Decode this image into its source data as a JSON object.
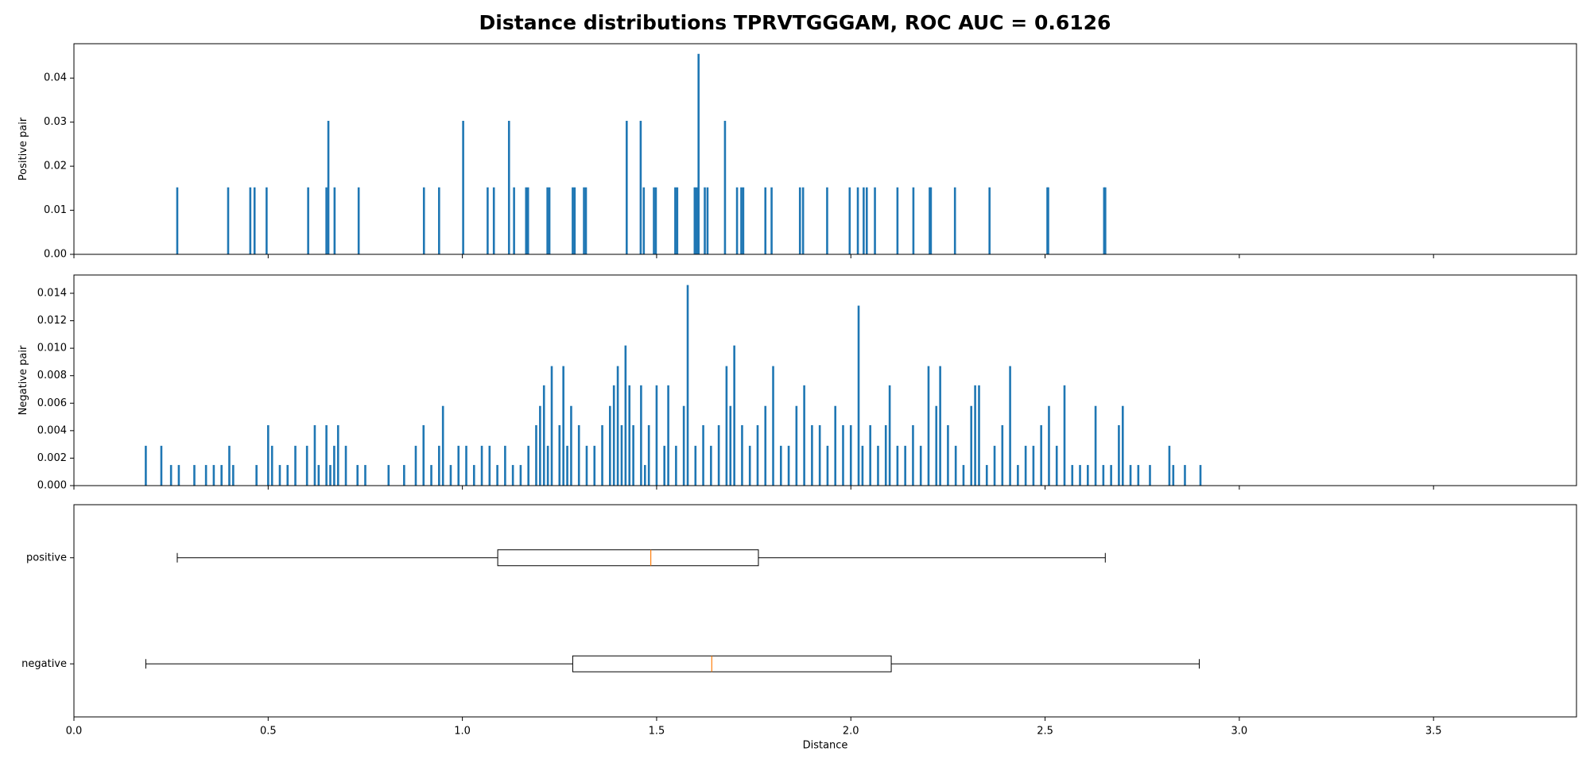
{
  "chart_data": [
    {
      "type": "bar",
      "title": "Distance distributions TPRVTGGGAM, ROC AUC = 0.6126",
      "ylabel": "Positive pair",
      "color": "#1f77b4",
      "x": [
        0.266,
        0.397,
        0.454,
        0.465,
        0.496,
        0.603,
        0.65,
        0.655,
        0.671,
        0.733,
        0.901,
        0.94,
        1.002,
        1.065,
        1.081,
        1.12,
        1.133,
        1.164,
        1.169,
        1.219,
        1.224,
        1.284,
        1.289,
        1.313,
        1.318,
        1.423,
        1.459,
        1.467,
        1.493,
        1.498,
        1.548,
        1.553,
        1.598,
        1.603,
        1.608,
        1.624,
        1.631,
        1.676,
        1.707,
        1.718,
        1.723,
        1.78,
        1.796,
        1.869,
        1.877,
        1.939,
        1.997,
        2.018,
        2.033,
        2.041,
        2.062,
        2.12,
        2.161,
        2.203,
        2.206,
        2.268,
        2.357,
        2.506,
        2.508,
        2.652,
        2.655
      ],
      "values": [
        0.0152,
        0.0152,
        0.0152,
        0.0152,
        0.0152,
        0.0152,
        0.0152,
        0.0303,
        0.0152,
        0.0152,
        0.0152,
        0.0152,
        0.0303,
        0.0152,
        0.0152,
        0.0303,
        0.0152,
        0.0152,
        0.0152,
        0.0152,
        0.0152,
        0.0152,
        0.0152,
        0.0152,
        0.0152,
        0.0303,
        0.0303,
        0.0152,
        0.0152,
        0.0152,
        0.0152,
        0.0152,
        0.0152,
        0.0152,
        0.0455,
        0.0152,
        0.0152,
        0.0303,
        0.0152,
        0.0152,
        0.0152,
        0.0152,
        0.0152,
        0.0152,
        0.0152,
        0.0152,
        0.0152,
        0.0152,
        0.0152,
        0.0152,
        0.0152,
        0.0152,
        0.0152,
        0.0152,
        0.0152,
        0.0152,
        0.0152,
        0.0152,
        0.0152,
        0.0152,
        0.0152
      ],
      "xlim": [
        0,
        3.868
      ],
      "ylim": [
        0,
        0.0478
      ],
      "yticks": [
        {
          "value": 0,
          "label": "0.00"
        },
        0.01,
        0.02,
        0.03,
        0.04
      ]
    },
    {
      "type": "bar",
      "ylabel": "Negative pair",
      "color": "#1f77b4",
      "x": [
        0.185,
        0.225,
        0.25,
        0.27,
        0.31,
        0.34,
        0.36,
        0.38,
        0.4,
        0.41,
        0.47,
        0.5,
        0.51,
        0.53,
        0.55,
        0.57,
        0.6,
        0.62,
        0.63,
        0.65,
        0.66,
        0.67,
        0.68,
        0.7,
        0.73,
        0.75,
        0.81,
        0.85,
        0.88,
        0.9,
        0.92,
        0.94,
        0.95,
        0.97,
        0.99,
        1.01,
        1.03,
        1.05,
        1.07,
        1.09,
        1.11,
        1.13,
        1.15,
        1.17,
        1.19,
        1.2,
        1.21,
        1.22,
        1.23,
        1.25,
        1.26,
        1.27,
        1.28,
        1.3,
        1.32,
        1.34,
        1.36,
        1.38,
        1.39,
        1.4,
        1.41,
        1.42,
        1.43,
        1.44,
        1.46,
        1.47,
        1.48,
        1.5,
        1.52,
        1.53,
        1.55,
        1.57,
        1.58,
        1.6,
        1.62,
        1.64,
        1.66,
        1.68,
        1.69,
        1.7,
        1.72,
        1.74,
        1.76,
        1.78,
        1.8,
        1.82,
        1.84,
        1.86,
        1.88,
        1.9,
        1.92,
        1.94,
        1.96,
        1.98,
        2.0,
        2.02,
        2.03,
        2.05,
        2.07,
        2.09,
        2.1,
        2.12,
        2.14,
        2.16,
        2.18,
        2.2,
        2.22,
        2.23,
        2.25,
        2.27,
        2.29,
        2.31,
        2.32,
        2.33,
        2.35,
        2.37,
        2.39,
        2.41,
        2.43,
        2.45,
        2.47,
        2.49,
        2.51,
        2.53,
        2.55,
        2.57,
        2.59,
        2.61,
        2.63,
        2.65,
        2.67,
        2.69,
        2.7,
        2.72,
        2.74,
        2.77,
        2.82,
        2.83,
        2.86,
        2.9
      ],
      "values": [
        0.0029,
        0.0029,
        0.0015,
        0.0015,
        0.0015,
        0.0015,
        0.0015,
        0.0015,
        0.0029,
        0.0015,
        0.0015,
        0.0044,
        0.0029,
        0.0015,
        0.0015,
        0.0029,
        0.0029,
        0.0044,
        0.0015,
        0.0044,
        0.0015,
        0.0029,
        0.0044,
        0.0029,
        0.0015,
        0.0015,
        0.0015,
        0.0015,
        0.0029,
        0.0044,
        0.0015,
        0.0029,
        0.0058,
        0.0015,
        0.0029,
        0.0029,
        0.0015,
        0.0029,
        0.0029,
        0.0015,
        0.0029,
        0.0015,
        0.0015,
        0.0029,
        0.0044,
        0.0058,
        0.0073,
        0.0029,
        0.0087,
        0.0044,
        0.0087,
        0.0029,
        0.0058,
        0.0044,
        0.0029,
        0.0029,
        0.0044,
        0.0058,
        0.0073,
        0.0087,
        0.0044,
        0.0102,
        0.0073,
        0.0044,
        0.0073,
        0.0015,
        0.0044,
        0.0073,
        0.0029,
        0.0073,
        0.0029,
        0.0058,
        0.0146,
        0.0029,
        0.0044,
        0.0029,
        0.0044,
        0.0087,
        0.0058,
        0.0102,
        0.0044,
        0.0029,
        0.0044,
        0.0058,
        0.0087,
        0.0029,
        0.0029,
        0.0058,
        0.0073,
        0.0044,
        0.0044,
        0.0029,
        0.0058,
        0.0044,
        0.0044,
        0.0131,
        0.0029,
        0.0044,
        0.0029,
        0.0044,
        0.0073,
        0.0029,
        0.0029,
        0.0044,
        0.0029,
        0.0087,
        0.0058,
        0.0087,
        0.0044,
        0.0029,
        0.0015,
        0.0058,
        0.0073,
        0.0073,
        0.0015,
        0.0029,
        0.0044,
        0.0087,
        0.0015,
        0.0029,
        0.0029,
        0.0044,
        0.0058,
        0.0029,
        0.0073,
        0.0015,
        0.0015,
        0.0015,
        0.0058,
        0.0015,
        0.0015,
        0.0044,
        0.0058,
        0.0015,
        0.0015,
        0.0015,
        0.0029,
        0.0015,
        0.0015,
        0.0015
      ],
      "xlim": [
        0,
        3.868
      ],
      "ylim": [
        0,
        0.01533
      ],
      "yticks": [
        {
          "value": 0,
          "label": "0.000"
        },
        0.002,
        0.004,
        0.006,
        0.008,
        {
          "value": 0.01,
          "label": "0.010"
        },
        0.012,
        0.014
      ]
    },
    {
      "type": "box",
      "xlabel": "Distance",
      "categories": [
        "positive",
        "negative"
      ],
      "median_color": "#ff7f0e",
      "stats": [
        {
          "min": 0.266,
          "q1": 1.091,
          "median": 1.485,
          "q3": 1.762,
          "max": 2.655
        },
        {
          "min": 0.185,
          "q1": 1.284,
          "median": 1.642,
          "q3": 2.104,
          "max": 2.897
        }
      ],
      "xlim": [
        0,
        3.868
      ],
      "xticks": [
        {
          "value": 0,
          "label": "0.0"
        },
        0.5,
        {
          "value": 1,
          "label": "1.0"
        },
        1.5,
        {
          "value": 2,
          "label": "2.0"
        },
        2.5,
        {
          "value": 3,
          "label": "3.0"
        },
        3.5
      ]
    }
  ]
}
